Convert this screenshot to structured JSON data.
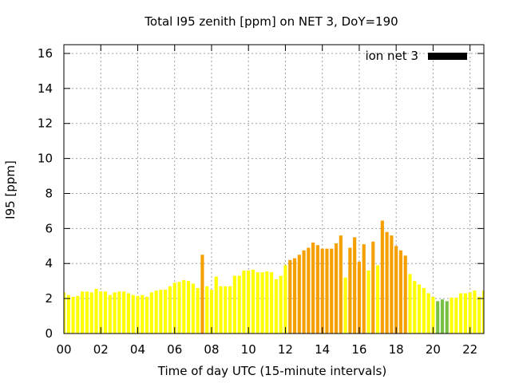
{
  "chart_data": {
    "type": "bar",
    "title": "Total I95 zenith [ppm] on NET 3, DoY=190",
    "xlabel": "Time of day UTC (15-minute intervals)",
    "ylabel": "I95 [ppm]",
    "xlim": [
      0,
      22.75
    ],
    "ylim": [
      0,
      16.5
    ],
    "xticks": [
      "00",
      "02",
      "04",
      "06",
      "08",
      "10",
      "12",
      "14",
      "16",
      "18",
      "20",
      "22"
    ],
    "xtick_values": [
      0,
      2,
      4,
      6,
      8,
      10,
      12,
      14,
      16,
      18,
      20,
      22
    ],
    "yticks": [
      "0",
      "2",
      "4",
      "6",
      "8",
      "10",
      "12",
      "14",
      "16"
    ],
    "ytick_values": [
      0,
      2,
      4,
      6,
      8,
      10,
      12,
      14,
      16
    ],
    "grid": true,
    "legend": {
      "position": "top-right",
      "label": "ion net 3",
      "color": "#000000"
    },
    "colors": {
      "yellow": "#ffff00",
      "orange": "#f5a000",
      "green": "#77c043",
      "grid": "#a0a0a0"
    },
    "bar_width_hours": 0.18,
    "bars": [
      {
        "x": 0.0,
        "value": 2.35,
        "color": "yellow"
      },
      {
        "x": 0.25,
        "value": 2.2,
        "color": "yellow"
      },
      {
        "x": 0.5,
        "value": 2.1,
        "color": "yellow"
      },
      {
        "x": 0.75,
        "value": 2.15,
        "color": "yellow"
      },
      {
        "x": 1.0,
        "value": 2.4,
        "color": "yellow"
      },
      {
        "x": 1.25,
        "value": 2.4,
        "color": "yellow"
      },
      {
        "x": 1.5,
        "value": 2.35,
        "color": "yellow"
      },
      {
        "x": 1.75,
        "value": 2.55,
        "color": "yellow"
      },
      {
        "x": 2.0,
        "value": 2.4,
        "color": "yellow"
      },
      {
        "x": 2.25,
        "value": 2.4,
        "color": "yellow"
      },
      {
        "x": 2.5,
        "value": 2.2,
        "color": "yellow"
      },
      {
        "x": 2.75,
        "value": 2.35,
        "color": "yellow"
      },
      {
        "x": 3.0,
        "value": 2.4,
        "color": "yellow"
      },
      {
        "x": 3.25,
        "value": 2.4,
        "color": "yellow"
      },
      {
        "x": 3.5,
        "value": 2.3,
        "color": "yellow"
      },
      {
        "x": 3.75,
        "value": 2.2,
        "color": "yellow"
      },
      {
        "x": 4.0,
        "value": 2.15,
        "color": "yellow"
      },
      {
        "x": 4.25,
        "value": 2.2,
        "color": "yellow"
      },
      {
        "x": 4.5,
        "value": 2.1,
        "color": "yellow"
      },
      {
        "x": 4.75,
        "value": 2.35,
        "color": "yellow"
      },
      {
        "x": 5.0,
        "value": 2.45,
        "color": "yellow"
      },
      {
        "x": 5.25,
        "value": 2.5,
        "color": "yellow"
      },
      {
        "x": 5.5,
        "value": 2.5,
        "color": "yellow"
      },
      {
        "x": 5.75,
        "value": 2.7,
        "color": "yellow"
      },
      {
        "x": 6.0,
        "value": 2.9,
        "color": "yellow"
      },
      {
        "x": 6.25,
        "value": 2.95,
        "color": "yellow"
      },
      {
        "x": 6.5,
        "value": 3.05,
        "color": "yellow"
      },
      {
        "x": 6.75,
        "value": 3.0,
        "color": "yellow"
      },
      {
        "x": 7.0,
        "value": 2.85,
        "color": "yellow"
      },
      {
        "x": 7.25,
        "value": 2.6,
        "color": "yellow"
      },
      {
        "x": 7.5,
        "value": 4.5,
        "color": "orange"
      },
      {
        "x": 7.75,
        "value": 2.7,
        "color": "yellow"
      },
      {
        "x": 8.0,
        "value": 2.5,
        "color": "yellow"
      },
      {
        "x": 8.25,
        "value": 3.25,
        "color": "yellow"
      },
      {
        "x": 8.5,
        "value": 2.7,
        "color": "yellow"
      },
      {
        "x": 8.75,
        "value": 2.7,
        "color": "yellow"
      },
      {
        "x": 9.0,
        "value": 2.7,
        "color": "yellow"
      },
      {
        "x": 9.25,
        "value": 3.3,
        "color": "yellow"
      },
      {
        "x": 9.5,
        "value": 3.3,
        "color": "yellow"
      },
      {
        "x": 9.75,
        "value": 3.6,
        "color": "yellow"
      },
      {
        "x": 10.0,
        "value": 3.6,
        "color": "yellow"
      },
      {
        "x": 10.25,
        "value": 3.65,
        "color": "yellow"
      },
      {
        "x": 10.5,
        "value": 3.5,
        "color": "yellow"
      },
      {
        "x": 10.75,
        "value": 3.5,
        "color": "yellow"
      },
      {
        "x": 11.0,
        "value": 3.55,
        "color": "yellow"
      },
      {
        "x": 11.25,
        "value": 3.5,
        "color": "yellow"
      },
      {
        "x": 11.5,
        "value": 3.1,
        "color": "yellow"
      },
      {
        "x": 11.75,
        "value": 3.3,
        "color": "yellow"
      },
      {
        "x": 12.0,
        "value": 3.9,
        "color": "yellow"
      },
      {
        "x": 12.25,
        "value": 4.2,
        "color": "orange"
      },
      {
        "x": 12.5,
        "value": 4.3,
        "color": "orange"
      },
      {
        "x": 12.75,
        "value": 4.5,
        "color": "orange"
      },
      {
        "x": 13.0,
        "value": 4.75,
        "color": "orange"
      },
      {
        "x": 13.25,
        "value": 4.9,
        "color": "orange"
      },
      {
        "x": 13.5,
        "value": 5.2,
        "color": "orange"
      },
      {
        "x": 13.75,
        "value": 5.05,
        "color": "orange"
      },
      {
        "x": 14.0,
        "value": 4.85,
        "color": "orange"
      },
      {
        "x": 14.25,
        "value": 4.85,
        "color": "orange"
      },
      {
        "x": 14.5,
        "value": 4.85,
        "color": "orange"
      },
      {
        "x": 14.75,
        "value": 5.15,
        "color": "orange"
      },
      {
        "x": 15.0,
        "value": 5.6,
        "color": "orange"
      },
      {
        "x": 15.25,
        "value": 3.2,
        "color": "yellow"
      },
      {
        "x": 15.5,
        "value": 4.9,
        "color": "orange"
      },
      {
        "x": 15.75,
        "value": 5.5,
        "color": "orange"
      },
      {
        "x": 16.0,
        "value": 4.1,
        "color": "orange"
      },
      {
        "x": 16.25,
        "value": 5.1,
        "color": "orange"
      },
      {
        "x": 16.5,
        "value": 3.6,
        "color": "yellow"
      },
      {
        "x": 16.75,
        "value": 5.25,
        "color": "orange"
      },
      {
        "x": 17.0,
        "value": 3.9,
        "color": "yellow"
      },
      {
        "x": 17.25,
        "value": 6.45,
        "color": "orange"
      },
      {
        "x": 17.5,
        "value": 5.8,
        "color": "orange"
      },
      {
        "x": 17.75,
        "value": 5.6,
        "color": "orange"
      },
      {
        "x": 18.0,
        "value": 5.0,
        "color": "orange"
      },
      {
        "x": 18.25,
        "value": 4.75,
        "color": "orange"
      },
      {
        "x": 18.5,
        "value": 4.45,
        "color": "orange"
      },
      {
        "x": 18.75,
        "value": 3.4,
        "color": "yellow"
      },
      {
        "x": 19.0,
        "value": 3.0,
        "color": "yellow"
      },
      {
        "x": 19.25,
        "value": 2.8,
        "color": "yellow"
      },
      {
        "x": 19.5,
        "value": 2.6,
        "color": "yellow"
      },
      {
        "x": 19.75,
        "value": 2.3,
        "color": "yellow"
      },
      {
        "x": 20.0,
        "value": 2.1,
        "color": "yellow"
      },
      {
        "x": 20.25,
        "value": 1.85,
        "color": "green"
      },
      {
        "x": 20.5,
        "value": 1.95,
        "color": "green"
      },
      {
        "x": 20.75,
        "value": 1.85,
        "color": "green"
      },
      {
        "x": 21.0,
        "value": 2.05,
        "color": "yellow"
      },
      {
        "x": 21.25,
        "value": 2.05,
        "color": "yellow"
      },
      {
        "x": 21.5,
        "value": 2.3,
        "color": "yellow"
      },
      {
        "x": 21.75,
        "value": 2.3,
        "color": "yellow"
      },
      {
        "x": 22.0,
        "value": 2.35,
        "color": "yellow"
      },
      {
        "x": 22.25,
        "value": 2.45,
        "color": "yellow"
      },
      {
        "x": 22.5,
        "value": 2.1,
        "color": "yellow"
      },
      {
        "x": 22.75,
        "value": 2.45,
        "color": "yellow"
      }
    ]
  }
}
